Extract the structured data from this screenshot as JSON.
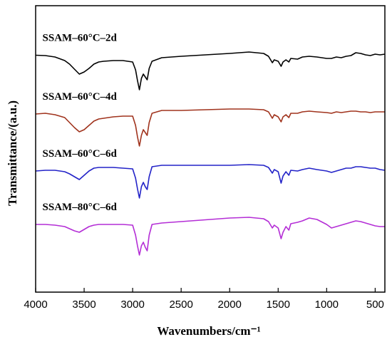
{
  "chart_data": {
    "type": "line",
    "title": "",
    "xlabel": "Wavenumbers/cm⁻¹",
    "ylabel": "Transmittance/(a.u.)",
    "xlim": [
      4000,
      400
    ],
    "x_reversed": true,
    "y_ticks_shown": false,
    "grid": false,
    "legend": "inline labels above each trace",
    "x_ticks": [
      4000,
      3500,
      3000,
      2500,
      2000,
      1500,
      1000,
      500
    ],
    "x_tick_labels": [
      "4000",
      "3500",
      "3000",
      "2500",
      "2000",
      "1500",
      "1000",
      "500"
    ],
    "series": [
      {
        "name": "SSAM–60°C–2d",
        "color": "#000000",
        "points": [
          [
            4000,
            77.5
          ],
          [
            3900,
            78
          ],
          [
            3800,
            80
          ],
          [
            3700,
            85
          ],
          [
            3650,
            90
          ],
          [
            3600,
            97
          ],
          [
            3550,
            104
          ],
          [
            3500,
            101
          ],
          [
            3450,
            96
          ],
          [
            3400,
            90
          ],
          [
            3350,
            87
          ],
          [
            3300,
            86
          ],
          [
            3200,
            85
          ],
          [
            3100,
            85
          ],
          [
            3000,
            87
          ],
          [
            2970,
            98
          ],
          [
            2950,
            113
          ],
          [
            2930,
            126
          ],
          [
            2910,
            110
          ],
          [
            2890,
            104
          ],
          [
            2870,
            108
          ],
          [
            2850,
            112
          ],
          [
            2830,
            96
          ],
          [
            2800,
            86
          ],
          [
            2700,
            81
          ],
          [
            2500,
            79
          ],
          [
            2000,
            75
          ],
          [
            1800,
            73
          ],
          [
            1650,
            75
          ],
          [
            1600,
            79
          ],
          [
            1560,
            88
          ],
          [
            1540,
            84
          ],
          [
            1500,
            86
          ],
          [
            1470,
            93
          ],
          [
            1450,
            87
          ],
          [
            1420,
            84
          ],
          [
            1390,
            87
          ],
          [
            1370,
            82
          ],
          [
            1300,
            83
          ],
          [
            1250,
            80
          ],
          [
            1180,
            79
          ],
          [
            1100,
            80
          ],
          [
            1000,
            82
          ],
          [
            950,
            82
          ],
          [
            900,
            80
          ],
          [
            850,
            81
          ],
          [
            800,
            79
          ],
          [
            750,
            78
          ],
          [
            700,
            74
          ],
          [
            650,
            75
          ],
          [
            600,
            77
          ],
          [
            550,
            78
          ],
          [
            500,
            76
          ],
          [
            450,
            77
          ],
          [
            400,
            76
          ]
        ]
      },
      {
        "name": "SSAM–60°C–4d",
        "color": "#a0331d",
        "points": [
          [
            4000,
            160
          ],
          [
            3900,
            159
          ],
          [
            3800,
            161
          ],
          [
            3700,
            165
          ],
          [
            3650,
            172
          ],
          [
            3600,
            179
          ],
          [
            3550,
            185
          ],
          [
            3500,
            182
          ],
          [
            3450,
            176
          ],
          [
            3400,
            170
          ],
          [
            3350,
            167
          ],
          [
            3300,
            166
          ],
          [
            3200,
            164
          ],
          [
            3100,
            163
          ],
          [
            3000,
            163
          ],
          [
            2970,
            176
          ],
          [
            2950,
            192
          ],
          [
            2930,
            205
          ],
          [
            2910,
            190
          ],
          [
            2890,
            182
          ],
          [
            2870,
            186
          ],
          [
            2850,
            190
          ],
          [
            2830,
            172
          ],
          [
            2800,
            159
          ],
          [
            2700,
            155
          ],
          [
            2500,
            155
          ],
          [
            2000,
            153
          ],
          [
            1800,
            153
          ],
          [
            1650,
            154
          ],
          [
            1600,
            157
          ],
          [
            1560,
            166
          ],
          [
            1540,
            161
          ],
          [
            1500,
            164
          ],
          [
            1470,
            171
          ],
          [
            1450,
            164
          ],
          [
            1420,
            161
          ],
          [
            1390,
            165
          ],
          [
            1370,
            159
          ],
          [
            1300,
            159
          ],
          [
            1250,
            157
          ],
          [
            1180,
            156
          ],
          [
            1100,
            157
          ],
          [
            1000,
            158
          ],
          [
            950,
            159
          ],
          [
            900,
            157
          ],
          [
            850,
            158
          ],
          [
            800,
            157
          ],
          [
            750,
            156
          ],
          [
            700,
            156
          ],
          [
            650,
            157
          ],
          [
            600,
            157
          ],
          [
            550,
            158
          ],
          [
            500,
            157
          ],
          [
            450,
            157
          ],
          [
            400,
            157
          ]
        ]
      },
      {
        "name": "SSAM–60°C–6d",
        "color": "#2323c8",
        "points": [
          [
            4000,
            240
          ],
          [
            3900,
            239
          ],
          [
            3800,
            239
          ],
          [
            3700,
            241
          ],
          [
            3650,
            244
          ],
          [
            3600,
            248
          ],
          [
            3550,
            252
          ],
          [
            3500,
            246
          ],
          [
            3450,
            240
          ],
          [
            3400,
            236
          ],
          [
            3350,
            235
          ],
          [
            3300,
            235
          ],
          [
            3200,
            235
          ],
          [
            3100,
            236
          ],
          [
            3000,
            237
          ],
          [
            2970,
            250
          ],
          [
            2950,
            265
          ],
          [
            2930,
            278
          ],
          [
            2910,
            262
          ],
          [
            2890,
            256
          ],
          [
            2870,
            262
          ],
          [
            2850,
            266
          ],
          [
            2830,
            248
          ],
          [
            2800,
            234
          ],
          [
            2700,
            232
          ],
          [
            2500,
            232
          ],
          [
            2000,
            232
          ],
          [
            1800,
            231
          ],
          [
            1650,
            232
          ],
          [
            1600,
            235
          ],
          [
            1560,
            243
          ],
          [
            1540,
            238
          ],
          [
            1500,
            241
          ],
          [
            1470,
            257
          ],
          [
            1450,
            247
          ],
          [
            1420,
            241
          ],
          [
            1390,
            246
          ],
          [
            1370,
            239
          ],
          [
            1300,
            240
          ],
          [
            1250,
            238
          ],
          [
            1180,
            236
          ],
          [
            1100,
            238
          ],
          [
            1000,
            240
          ],
          [
            950,
            242
          ],
          [
            900,
            240
          ],
          [
            850,
            238
          ],
          [
            800,
            236
          ],
          [
            750,
            236
          ],
          [
            700,
            234
          ],
          [
            650,
            234
          ],
          [
            600,
            235
          ],
          [
            550,
            236
          ],
          [
            500,
            236
          ],
          [
            450,
            238
          ],
          [
            400,
            239
          ]
        ]
      },
      {
        "name": "SSAM–80°C–6d",
        "color": "#b42ed6",
        "points": [
          [
            4000,
            315
          ],
          [
            3900,
            315
          ],
          [
            3800,
            316
          ],
          [
            3700,
            318
          ],
          [
            3650,
            321
          ],
          [
            3600,
            324
          ],
          [
            3550,
            326
          ],
          [
            3500,
            322
          ],
          [
            3450,
            318
          ],
          [
            3400,
            316
          ],
          [
            3350,
            315
          ],
          [
            3300,
            315
          ],
          [
            3200,
            315
          ],
          [
            3100,
            315
          ],
          [
            3000,
            316
          ],
          [
            2970,
            330
          ],
          [
            2950,
            345
          ],
          [
            2930,
            358
          ],
          [
            2910,
            345
          ],
          [
            2890,
            340
          ],
          [
            2870,
            347
          ],
          [
            2850,
            352
          ],
          [
            2830,
            330
          ],
          [
            2800,
            315
          ],
          [
            2700,
            313
          ],
          [
            2500,
            311
          ],
          [
            2000,
            306
          ],
          [
            1800,
            305
          ],
          [
            1650,
            307
          ],
          [
            1600,
            311
          ],
          [
            1560,
            320
          ],
          [
            1540,
            316
          ],
          [
            1500,
            320
          ],
          [
            1470,
            335
          ],
          [
            1450,
            326
          ],
          [
            1420,
            318
          ],
          [
            1390,
            323
          ],
          [
            1370,
            314
          ],
          [
            1300,
            312
          ],
          [
            1250,
            310
          ],
          [
            1180,
            306
          ],
          [
            1100,
            308
          ],
          [
            1000,
            315
          ],
          [
            950,
            320
          ],
          [
            900,
            318
          ],
          [
            850,
            316
          ],
          [
            800,
            314
          ],
          [
            750,
            312
          ],
          [
            700,
            310
          ],
          [
            650,
            311
          ],
          [
            600,
            313
          ],
          [
            550,
            315
          ],
          [
            500,
            317
          ],
          [
            450,
            318
          ],
          [
            400,
            318
          ]
        ]
      }
    ]
  }
}
